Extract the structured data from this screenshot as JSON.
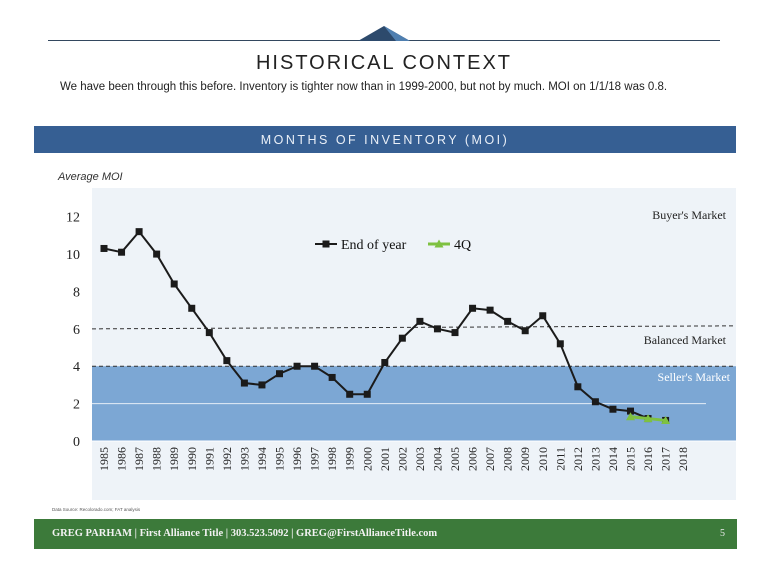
{
  "header": {
    "title": "HISTORICAL CONTEXT",
    "subtitle": "We have been through this before.  Inventory is tighter now than in 1999-2000, but not by much.  MOI on 1/1/18 was 0.8."
  },
  "band": {
    "title": "MONTHS OF INVENTORY (MOI)"
  },
  "chart_label": "Average MOI",
  "chart_data": {
    "type": "line",
    "categories": [
      "1985",
      "1986",
      "1987",
      "1988",
      "1989",
      "1990",
      "1991",
      "1992",
      "1993",
      "1994",
      "1995",
      "1996",
      "1997",
      "1998",
      "1999",
      "2000",
      "2001",
      "2002",
      "2003",
      "2004",
      "2005",
      "2006",
      "2007",
      "2008",
      "2009",
      "2010",
      "2011",
      "2012",
      "2013",
      "2014",
      "2015",
      "2016",
      "2017",
      "2018"
    ],
    "series": [
      {
        "name": "End of year",
        "color": "#1b1b1b",
        "values": [
          10.3,
          10.1,
          11.2,
          10.0,
          8.4,
          7.1,
          5.8,
          4.3,
          3.1,
          3.0,
          3.6,
          4.0,
          4.0,
          3.4,
          2.5,
          2.5,
          4.2,
          5.5,
          6.4,
          6.0,
          5.8,
          7.1,
          7.0,
          6.4,
          5.9,
          6.7,
          5.2,
          2.9,
          2.1,
          1.7,
          1.6,
          1.2,
          1.1,
          null
        ]
      },
      {
        "name": "4Q",
        "color": "#7ec141",
        "values": [
          null,
          null,
          null,
          null,
          null,
          null,
          null,
          null,
          null,
          null,
          null,
          null,
          null,
          null,
          null,
          null,
          null,
          null,
          null,
          null,
          null,
          null,
          null,
          null,
          null,
          null,
          null,
          null,
          null,
          null,
          1.3,
          1.2,
          1.1,
          null
        ]
      }
    ],
    "ylim": [
      0,
      13
    ],
    "yticks": [
      0,
      2,
      4,
      6,
      8,
      10,
      12
    ],
    "reference_lines": [
      {
        "label": "Balanced Market",
        "value": 6
      },
      {
        "label": "Seller's Market",
        "value": 4
      }
    ],
    "regions": [
      {
        "label": "Buyer's Market"
      },
      {
        "label": "Seller's Market",
        "from": 0,
        "to": 4,
        "color": "#6f9fcf"
      }
    ],
    "legend": "top-center"
  },
  "source": "Data Source: Recolorado.com; FAT analysis",
  "footer": {
    "text": "GREG PARHAM  |  First Alliance Title  |  303.523.5092  |  GREG@FirstAllianceTitle.com",
    "page": "5"
  }
}
